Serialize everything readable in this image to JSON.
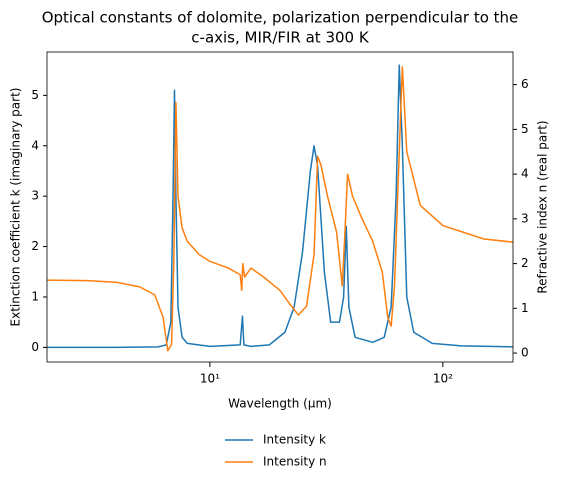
{
  "chart_data": {
    "type": "line",
    "title": [
      "Optical constants of dolomite, polarization perpendicular to the",
      "c-axis, MIR/FIR at 300 K"
    ],
    "xlabel": "Wavelength (μm)",
    "ylabel": "Extinction coefficient k (imaginary part)",
    "y2label": "Refractive index n (real part)",
    "xscale": "log",
    "xlim": [
      2,
      200
    ],
    "xticks": [
      {
        "value": 10,
        "label": "10¹"
      },
      {
        "value": 100,
        "label": "10²"
      }
    ],
    "ylim": [
      -0.29,
      5.86
    ],
    "yticks": [
      0,
      1,
      2,
      3,
      4,
      5
    ],
    "y2lim": [
      -0.2,
      6.73
    ],
    "y2ticks": [
      0,
      1,
      2,
      3,
      4,
      5,
      6
    ],
    "legend": "lower-center-outside",
    "series": [
      {
        "name": "Intensity k",
        "color": "#1f77b4",
        "x": [
          2,
          4,
          6,
          6.5,
          6.8,
          6.95,
          7.05,
          7.15,
          7.3,
          7.6,
          8,
          10,
          13.5,
          13.8,
          14.0,
          15,
          18,
          21,
          23,
          25,
          27,
          28,
          29,
          31,
          33,
          36,
          37.5,
          38.5,
          39.5,
          42,
          50,
          56,
          60,
          63,
          65,
          67,
          70,
          75,
          90,
          120,
          200
        ],
        "values": [
          0.0,
          0.0,
          0.01,
          0.05,
          0.5,
          3.0,
          5.1,
          3.0,
          0.8,
          0.2,
          0.08,
          0.02,
          0.05,
          0.62,
          0.05,
          0.02,
          0.05,
          0.3,
          0.8,
          1.9,
          3.5,
          4.0,
          3.6,
          1.5,
          0.5,
          0.5,
          1.0,
          2.4,
          0.8,
          0.2,
          0.1,
          0.2,
          0.8,
          3.0,
          5.6,
          4.0,
          1.0,
          0.3,
          0.08,
          0.03,
          0.01
        ]
      },
      {
        "name": "Intensity n",
        "color": "#ff7f0e",
        "axis": "y2",
        "x": [
          2,
          3,
          4,
          5,
          5.8,
          6.3,
          6.6,
          6.85,
          7.0,
          7.15,
          7.3,
          7.6,
          8,
          9,
          10,
          12,
          13.5,
          13.7,
          13.85,
          14.1,
          15,
          17,
          20,
          22,
          24,
          26,
          28,
          29,
          30,
          32,
          35,
          37,
          38,
          39,
          41,
          45,
          50,
          55,
          58,
          60,
          62,
          65,
          67,
          70,
          80,
          100,
          150,
          200
        ],
        "values": [
          1.63,
          1.62,
          1.58,
          1.48,
          1.3,
          0.8,
          0.05,
          0.2,
          2.0,
          5.6,
          3.5,
          2.8,
          2.5,
          2.2,
          2.05,
          1.9,
          1.75,
          1.4,
          2.0,
          1.7,
          1.9,
          1.7,
          1.4,
          1.1,
          0.85,
          1.05,
          2.2,
          4.4,
          4.2,
          3.5,
          2.7,
          1.5,
          2.7,
          4.0,
          3.5,
          3.0,
          2.5,
          1.8,
          0.8,
          0.6,
          1.5,
          4.5,
          6.4,
          4.5,
          3.3,
          2.85,
          2.55,
          2.48
        ]
      }
    ]
  }
}
